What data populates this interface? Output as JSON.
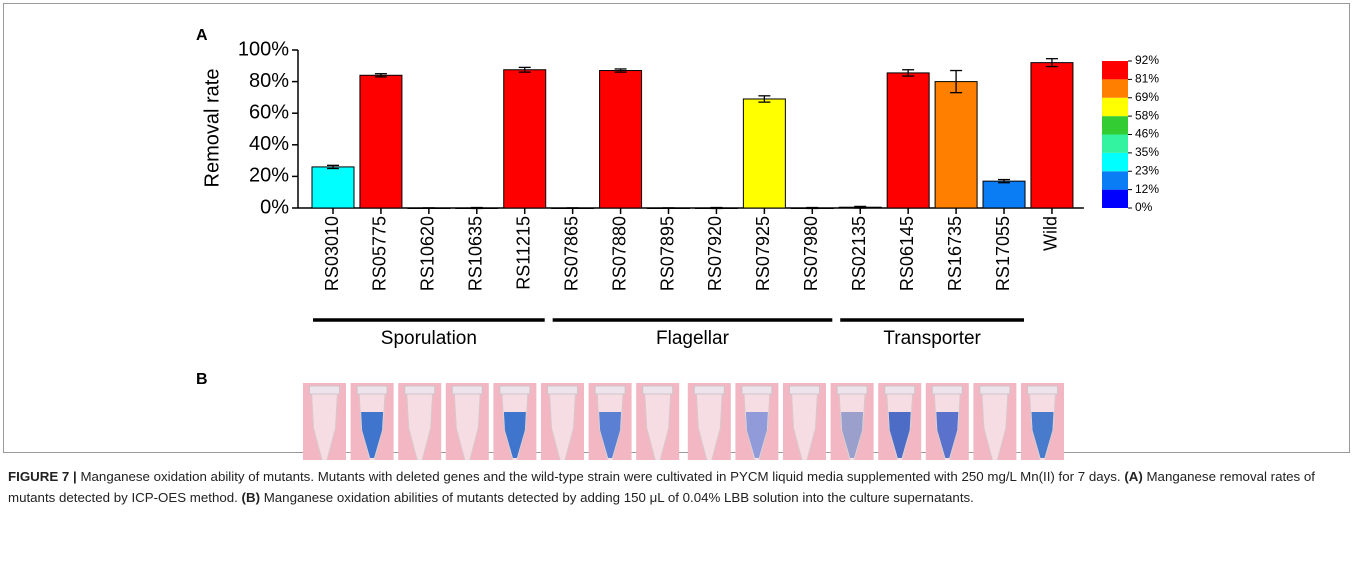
{
  "chart_data": {
    "type": "bar",
    "panel": "A",
    "y_label": "Removal rate",
    "categories": [
      "RS03010",
      "RS05775",
      "RS10620",
      "RS10635",
      "RS11215",
      "RS07865",
      "RS07880",
      "RS07895",
      "RS07920",
      "RS07925",
      "RS07980",
      "RS02135",
      "RS06145",
      "RS16735",
      "RS17055",
      "Wild"
    ],
    "values": [
      26,
      84,
      0,
      0,
      87.5,
      0,
      87,
      0,
      0,
      69,
      0,
      0.5,
      85.5,
      80,
      17,
      92
    ],
    "errors": [
      1,
      1,
      0,
      0.3,
      1.5,
      0,
      1,
      0,
      0.3,
      2,
      0.3,
      0.5,
      2,
      7,
      1,
      2.5
    ],
    "colors": [
      "#00ffff",
      "#ff0000",
      "#0000ff",
      "#0000ff",
      "#ff0000",
      "#0000ff",
      "#ff0000",
      "#0000ff",
      "#0000ff",
      "#ffff00",
      "#0000ff",
      "#0000ff",
      "#ff0000",
      "#ff8000",
      "#0a7df5",
      "#ff0000"
    ],
    "ylim": [
      0,
      100
    ],
    "yticks": [
      {
        "value": 0,
        "label": "0%"
      },
      {
        "value": 20,
        "label": "20%"
      },
      {
        "value": 40,
        "label": "40%"
      },
      {
        "value": 60,
        "label": "60%"
      },
      {
        "value": 80,
        "label": "80%"
      },
      {
        "value": 100,
        "label": "100%"
      }
    ],
    "groups": [
      "Sporulation",
      "Flagellar",
      "Transporter"
    ],
    "colorbar": {
      "colors": [
        "#0000ff",
        "#0a7df5",
        "#00ffff",
        "#33f2a0",
        "#33cc33",
        "#ffff00",
        "#ff8000",
        "#ff0000"
      ],
      "ticks": [
        {
          "value": 0,
          "label": "0%"
        },
        {
          "value": 11.5,
          "label": "12%"
        },
        {
          "value": 23,
          "label": "23%"
        },
        {
          "value": 34.5,
          "label": "35%"
        },
        {
          "value": 46,
          "label": "46%"
        },
        {
          "value": 57.5,
          "label": "58%"
        },
        {
          "value": 69,
          "label": "69%"
        },
        {
          "value": 80.5,
          "label": "81%"
        },
        {
          "value": 92,
          "label": "92%"
        }
      ]
    }
  },
  "panel_b": {
    "label": "B"
  },
  "caption": {
    "label": "FIGURE 7 |",
    "parts": [
      "Manganese oxidation ability of mutants. Mutants with deleted genes and the wild-type strain were cultivated in PYCM liquid media supplemented with 250 mg/L Mn(II) for 7 days. ",
      "(A)",
      " Manganese removal rates of mutants detected by ICP-OES method. ",
      "(B)",
      " Manganese oxidation abilities of mutants detected by adding 150 μL of 0.04% LBB solution into the culture supernatants."
    ]
  }
}
